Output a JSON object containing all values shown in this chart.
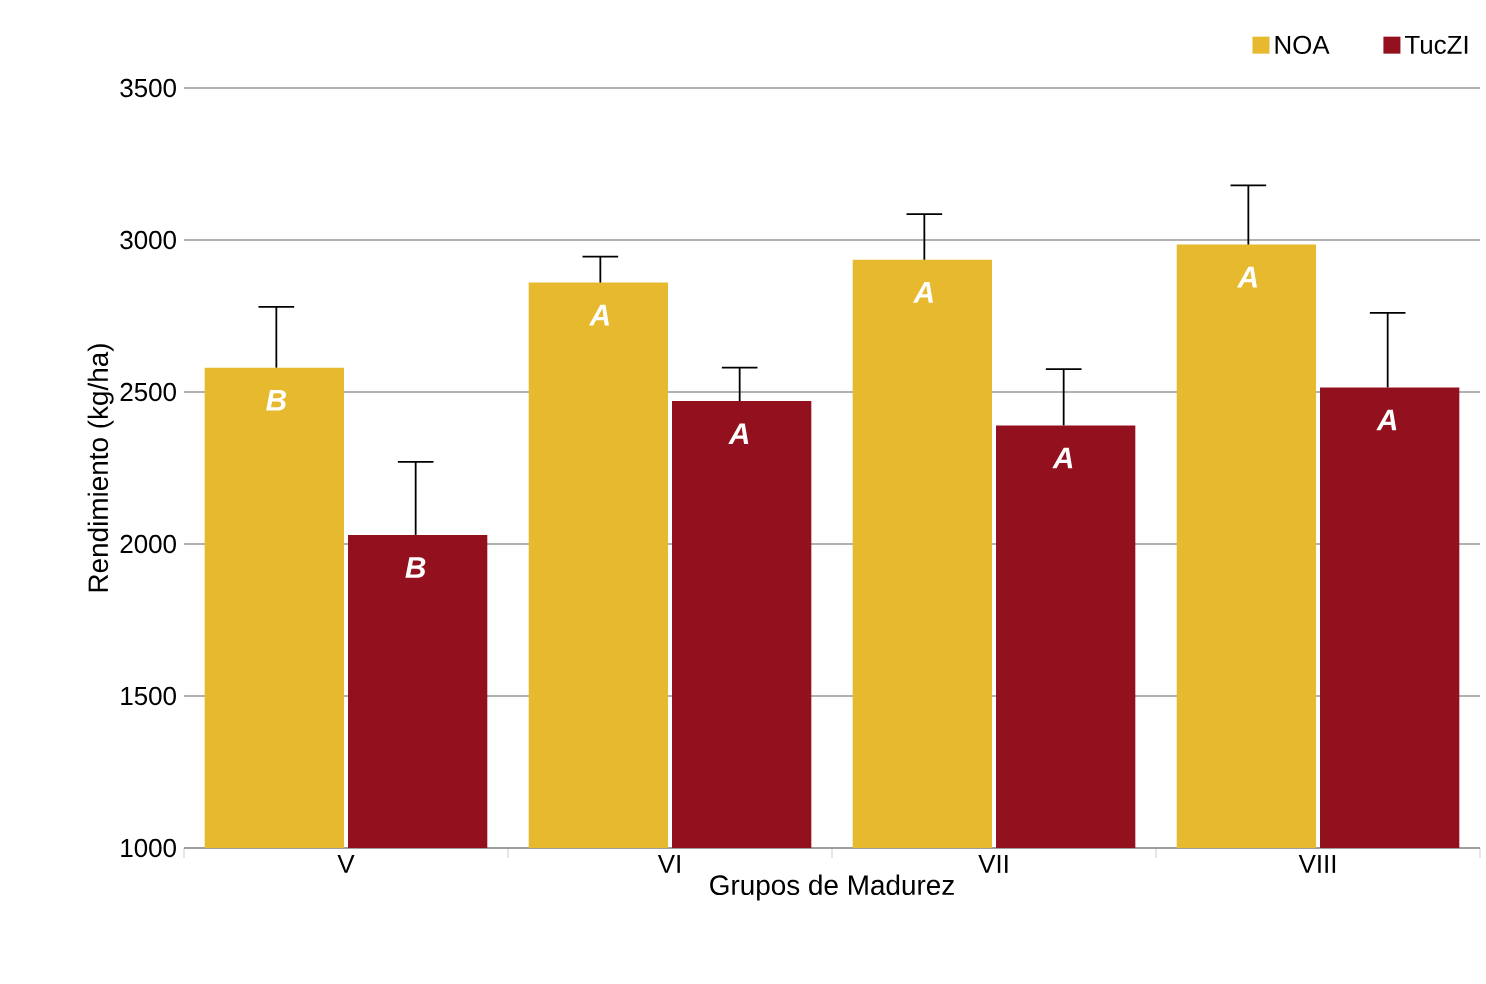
{
  "chart_data": {
    "type": "bar",
    "xlabel": "Grupos de Madurez",
    "ylabel": "Rendimiento (kg/ha)",
    "categories": [
      "V",
      "VI",
      "VII",
      "VIII"
    ],
    "series": [
      {
        "name": "NOA",
        "color": "#e6b92e",
        "values": [
          2580,
          2860,
          2935,
          2985
        ],
        "errors": [
          [
            2580,
            2780
          ],
          [
            2860,
            2945
          ],
          [
            2935,
            3085
          ],
          [
            2985,
            3180
          ]
        ],
        "value_labels": [
          "B",
          "A",
          "A",
          "A"
        ]
      },
      {
        "name": "TucZI",
        "color": "#93111e",
        "values": [
          2030,
          2470,
          2390,
          2515
        ],
        "errors": [
          [
            2030,
            2270
          ],
          [
            2470,
            2580
          ],
          [
            2390,
            2575
          ],
          [
            2515,
            2760
          ]
        ],
        "value_labels": [
          "B",
          "A",
          "A",
          "A"
        ]
      }
    ],
    "ylim": [
      1000,
      3500
    ],
    "yticks": [
      1000,
      1500,
      2000,
      2500,
      3000,
      3500
    ],
    "grid": "y",
    "legend": "top right"
  }
}
